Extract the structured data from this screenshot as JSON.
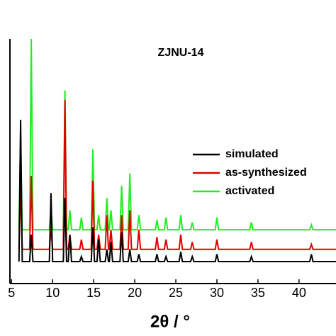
{
  "chart_data": {
    "type": "line",
    "title": "ZJNU-14",
    "xlabel": "2θ / °",
    "x": [
      5.9,
      6.1,
      6.3,
      7.2,
      7.4,
      7.6,
      9.6,
      9.8,
      10.0,
      11.3,
      11.5,
      11.7,
      11.9,
      12.1,
      12.3,
      13.3,
      13.5,
      13.7,
      14.7,
      14.9,
      15.1,
      15.4,
      15.6,
      15.8,
      16.4,
      16.6,
      16.8,
      16.9,
      17.1,
      17.3,
      18.2,
      18.4,
      18.6,
      19.2,
      19.4,
      19.6,
      20.3,
      20.5,
      20.7,
      22.5,
      22.7,
      22.9,
      23.6,
      23.8,
      24.0,
      25.4,
      25.6,
      25.8,
      26.8,
      27.0,
      27.2,
      29.8,
      30.0,
      30.2,
      34.0,
      34.2,
      34.4,
      41.3,
      41.5,
      41.7,
      44.5
    ],
    "series": [
      {
        "name": "simulated",
        "color": "#000000",
        "values": [
          9,
          67,
          9,
          9,
          20,
          9,
          9,
          37,
          9,
          9,
          35,
          9,
          9,
          20,
          9,
          9,
          11,
          9,
          9,
          23,
          9,
          9,
          18,
          9,
          9,
          14,
          9,
          9,
          17,
          9,
          9,
          21,
          9,
          9,
          14,
          9,
          9,
          12,
          9,
          9,
          12,
          9,
          9,
          11,
          9,
          9,
          13,
          9,
          9,
          11,
          9,
          9,
          12,
          9,
          9,
          11,
          9,
          9,
          12,
          9,
          9
        ]
      },
      {
        "name": "as-synthesized",
        "color": "#e00000",
        "values": [
          14,
          40,
          14,
          14,
          44,
          14,
          14,
          22,
          14,
          14,
          75,
          14,
          14,
          20,
          14,
          14,
          18,
          14,
          14,
          42,
          14,
          14,
          20,
          14,
          14,
          28,
          14,
          14,
          22,
          14,
          14,
          28,
          14,
          14,
          30,
          14,
          14,
          22,
          14,
          14,
          19,
          14,
          14,
          18,
          14,
          14,
          20,
          14,
          14,
          17,
          14,
          14,
          18,
          14,
          14,
          17,
          14,
          14,
          16,
          14,
          14
        ]
      },
      {
        "name": "activated",
        "color": "#22ee22",
        "values": [
          22,
          60,
          22,
          22,
          100,
          22,
          22,
          30,
          22,
          22,
          79,
          22,
          22,
          30,
          22,
          22,
          27,
          22,
          22,
          55,
          22,
          22,
          28,
          22,
          22,
          35,
          22,
          22,
          30,
          22,
          22,
          40,
          22,
          22,
          45,
          22,
          22,
          28,
          22,
          22,
          26,
          22,
          22,
          27,
          22,
          22,
          28,
          22,
          22,
          25,
          22,
          22,
          27,
          22,
          22,
          25,
          22,
          22,
          24,
          22,
          22
        ]
      }
    ],
    "xlim": [
      4.8,
      44.5
    ],
    "xticks": [
      5,
      10,
      15,
      20,
      25,
      30,
      35,
      40
    ],
    "ylim": [
      0,
      100
    ]
  }
}
